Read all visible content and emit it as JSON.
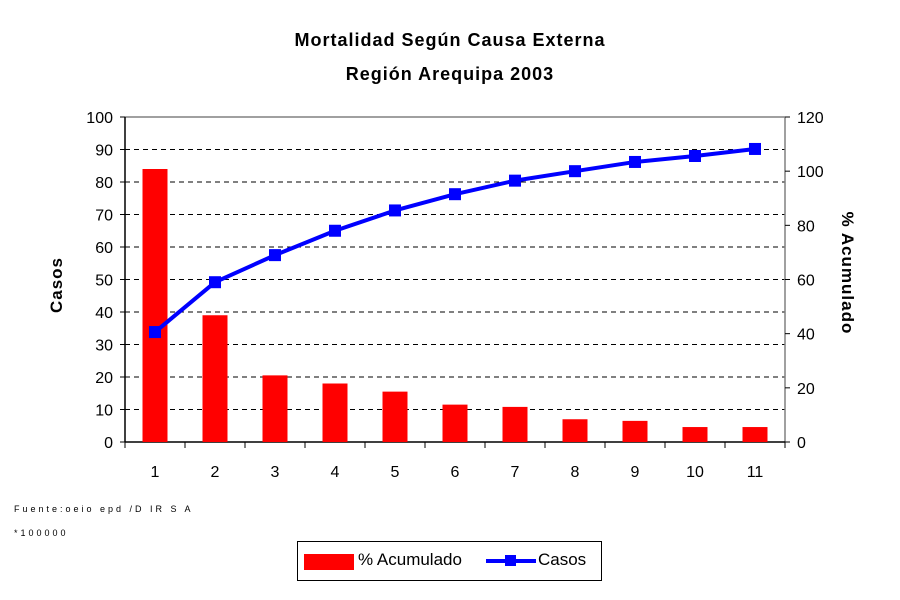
{
  "chart_data": {
    "type": "bar+line",
    "title": "Mortalidad Según Causa Externa",
    "subtitle": "Región Arequipa 2003",
    "categories": [
      "1",
      "2",
      "3",
      "4",
      "5",
      "6",
      "7",
      "8",
      "9",
      "10",
      "11"
    ],
    "series": [
      {
        "name": "% Acumulado",
        "type": "bar",
        "axis": "left",
        "color": "#ff0000",
        "values": [
          84,
          39,
          20.5,
          18,
          15.5,
          11.5,
          10.8,
          7,
          6.5,
          4.6,
          4.6
        ]
      },
      {
        "name": "Casos",
        "type": "line",
        "axis": "right",
        "color": "#0000ff",
        "marker": "square",
        "values": [
          40.6,
          59,
          69,
          78,
          85.5,
          91.5,
          96.5,
          100,
          103.4,
          105.6,
          108.2
        ]
      }
    ],
    "ylabel": "Casos",
    "y2label": "% Acumulado",
    "ylim": [
      0,
      100
    ],
    "y2lim": [
      0,
      120
    ],
    "yticks": [
      "0",
      "10",
      "20",
      "30",
      "40",
      "50",
      "60",
      "70",
      "80",
      "90",
      "100"
    ],
    "y2ticks": [
      "0",
      "20",
      "40",
      "60",
      "80",
      "100",
      "120"
    ],
    "grid": "dashed horizontal",
    "legend": "bottom"
  },
  "footer": {
    "source": "Fuente:oeio epd /D IR S A",
    "note": "*100000"
  }
}
